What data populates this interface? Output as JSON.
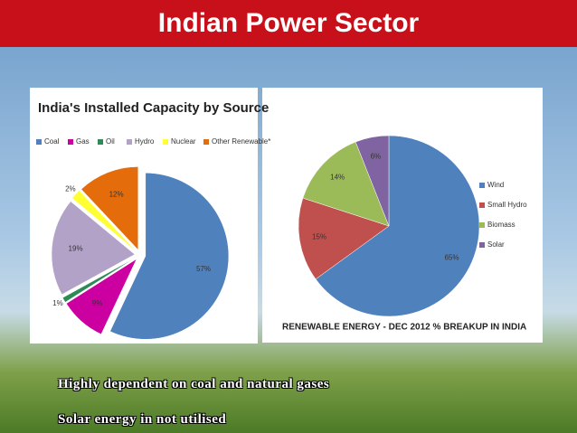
{
  "header": {
    "title": "Indian Power Sector"
  },
  "chart_data": [
    {
      "type": "pie",
      "title": "India's Installed Capacity by Source",
      "categories": [
        "Coal",
        "Gas",
        "Oil",
        "Hydro",
        "Nuclear",
        "Other Renewable*"
      ],
      "values": [
        57,
        9,
        1,
        19,
        2,
        12
      ],
      "value_labels": [
        "57%",
        "9%",
        "1%",
        "19%",
        "2%",
        "12%"
      ],
      "colors": [
        "#4f81bd",
        "#cc00a0",
        "#2e8b57",
        "#b3a2c7",
        "#ffff33",
        "#e46c0a"
      ],
      "legend": "top"
    },
    {
      "type": "pie",
      "title": "RENEWABLE ENERGY - DEC 2012 % BREAKUP IN INDIA",
      "categories": [
        "Wind",
        "Small Hydro",
        "Biomass",
        "Solar"
      ],
      "values": [
        65,
        15,
        14,
        6
      ],
      "value_labels": [
        "65%",
        "15%",
        "14%",
        "6%"
      ],
      "colors": [
        "#4f81bd",
        "#c0504d",
        "#9bbb59",
        "#8064a2"
      ],
      "legend": "right"
    }
  ],
  "bullets": [
    "Highly dependent on coal and natural gases",
    "Solar energy in not utilised"
  ]
}
